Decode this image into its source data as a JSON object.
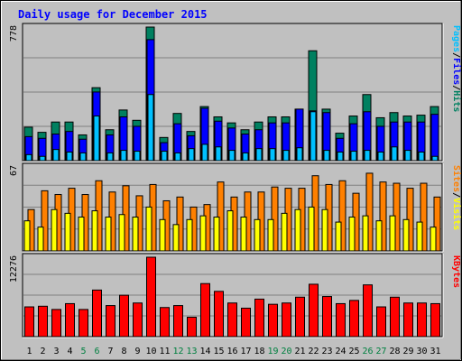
{
  "chart_data": {
    "type": "bar",
    "title": "Daily usage for December 2015",
    "categories": [
      "1",
      "2",
      "3",
      "4",
      "5",
      "6",
      "7",
      "8",
      "9",
      "10",
      "11",
      "12",
      "13",
      "14",
      "15",
      "16",
      "17",
      "18",
      "19",
      "20",
      "21",
      "22",
      "23",
      "24",
      "25",
      "26",
      "27",
      "28",
      "29",
      "30",
      "31"
    ],
    "weekend_days": [
      "5",
      "6",
      "12",
      "13",
      "19",
      "20",
      "26",
      "27"
    ],
    "panels": [
      {
        "name": "usage",
        "y_max_label": "778",
        "ylim": [
          0,
          778
        ],
        "legend": [
          {
            "text": "Pages",
            "color": "#00c0ff"
          },
          {
            "text": "/",
            "color": "#000000"
          },
          {
            "text": "Files",
            "color": "#0000ff"
          },
          {
            "text": "/",
            "color": "#000000"
          },
          {
            "text": "Hits",
            "color": "#008060"
          }
        ],
        "series": [
          {
            "name": "Hits",
            "color": "#008060",
            "values": [
              195,
              165,
              225,
              225,
              150,
              425,
              180,
              295,
              235,
              778,
              135,
              275,
              170,
              315,
              255,
              220,
              180,
              225,
              255,
              255,
              300,
              640,
              300,
              160,
              260,
              385,
              250,
              280,
              260,
              265,
              315
            ]
          },
          {
            "name": "Files",
            "color": "#0000ff",
            "values": [
              140,
              130,
              155,
              170,
              125,
              400,
              150,
              255,
              200,
              705,
              105,
              215,
              145,
              305,
              230,
              190,
              155,
              180,
              220,
              220,
              300,
              290,
              280,
              130,
              215,
              285,
              200,
              225,
              225,
              225,
              270
            ]
          },
          {
            "name": "Pages",
            "color": "#00c0ff",
            "values": [
              35,
              25,
              65,
              50,
              45,
              260,
              45,
              60,
              55,
              385,
              55,
              45,
              70,
              95,
              80,
              60,
              45,
              70,
              70,
              60,
              75,
              285,
              60,
              50,
              55,
              60,
              50,
              80,
              60,
              50,
              25
            ]
          }
        ]
      },
      {
        "name": "visits",
        "y_max_label": "67",
        "ylim": [
          0,
          67
        ],
        "legend": [
          {
            "text": "Sites",
            "color": "#ff8000"
          },
          {
            "text": "/",
            "color": "#000000"
          },
          {
            "text": "Visits",
            "color": "#ffff00"
          }
        ],
        "series": [
          {
            "name": "Visits",
            "color": "#ff8000",
            "values": [
              33,
              48,
              45,
              50,
              45,
              56,
              47,
              52,
              44,
              53,
              40,
              43,
              35,
              37,
              55,
              43,
              47,
              47,
              51,
              50,
              50,
              60,
              53,
              56,
              46,
              62,
              55,
              54,
              50,
              54,
              43
            ]
          },
          {
            "name": "Sites",
            "color": "#ffff00",
            "values": [
              24,
              19,
              33,
              30,
              27,
              32,
              27,
              29,
              27,
              35,
              25,
              21,
              25,
              28,
              27,
              32,
              27,
              25,
              25,
              30,
              33,
              35,
              33,
              23,
              27,
              28,
              24,
              28,
              25,
              23,
              19
            ]
          }
        ]
      },
      {
        "name": "kbytes",
        "y_max_label": "12276",
        "ylim": [
          0,
          12276
        ],
        "legend": [
          {
            "text": "KBytes",
            "color": "#ff0000"
          }
        ],
        "series": [
          {
            "name": "KBytes",
            "color": "#ff0000",
            "values": [
              4600,
              4700,
              4200,
              5100,
              4200,
              7200,
              4800,
              6400,
              5200,
              12276,
              4500,
              4800,
              3000,
              8200,
              7000,
              5200,
              4400,
              5800,
              5000,
              5200,
              6100,
              8100,
              6200,
              5100,
              5600,
              8000,
              4600,
              6100,
              5200,
              5200,
              5100
            ]
          }
        ]
      }
    ]
  }
}
